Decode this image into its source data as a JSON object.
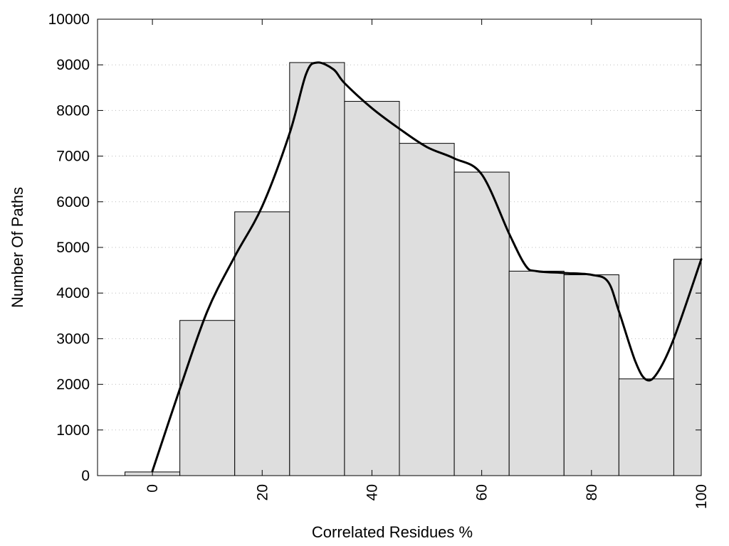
{
  "chart_data": {
    "type": "bar",
    "title": "",
    "xlabel": "Correlated Residues %",
    "ylabel": "Number Of Paths",
    "bins": [
      0,
      10,
      20,
      30,
      40,
      50,
      60,
      70,
      80,
      90,
      100
    ],
    "values": [
      80,
      3400,
      5780,
      9050,
      8200,
      7280,
      6650,
      4480,
      4400,
      2120,
      4740
    ],
    "bin_width": 10,
    "xlim": [
      -10,
      100
    ],
    "ylim": [
      0,
      10000
    ],
    "x_ticks": [
      0,
      20,
      40,
      60,
      80,
      100
    ],
    "x_tick_labels": [
      "0",
      "20",
      "40",
      "60",
      "80",
      "100"
    ],
    "y_ticks": [
      0,
      1000,
      2000,
      3000,
      4000,
      5000,
      6000,
      7000,
      8000,
      9000,
      10000
    ],
    "y_tick_labels": [
      "0",
      "1000",
      "2000",
      "3000",
      "4000",
      "5000",
      "6000",
      "7000",
      "8000",
      "9000",
      "10000"
    ],
    "grid": "horizontal dotted",
    "bar_color": "#dedede",
    "line_color": "#000000",
    "series": [
      {
        "type": "bar",
        "values": [
          80,
          3400,
          5780,
          9050,
          8200,
          7280,
          6650,
          4480,
          4400,
          2120,
          4740
        ]
      },
      {
        "type": "line",
        "smooth": true,
        "x": [
          0,
          5,
          10,
          15,
          20,
          25,
          28,
          30,
          33,
          35,
          40,
          45,
          50,
          55,
          60,
          65,
          68,
          70,
          75,
          80,
          83,
          85,
          88,
          90,
          92,
          95,
          100
        ],
        "y": [
          100,
          1900,
          3600,
          4800,
          5900,
          7500,
          8800,
          9050,
          8900,
          8600,
          8050,
          7600,
          7200,
          6950,
          6600,
          5300,
          4600,
          4480,
          4440,
          4400,
          4250,
          3600,
          2500,
          2100,
          2250,
          3000,
          4740
        ]
      }
    ]
  }
}
